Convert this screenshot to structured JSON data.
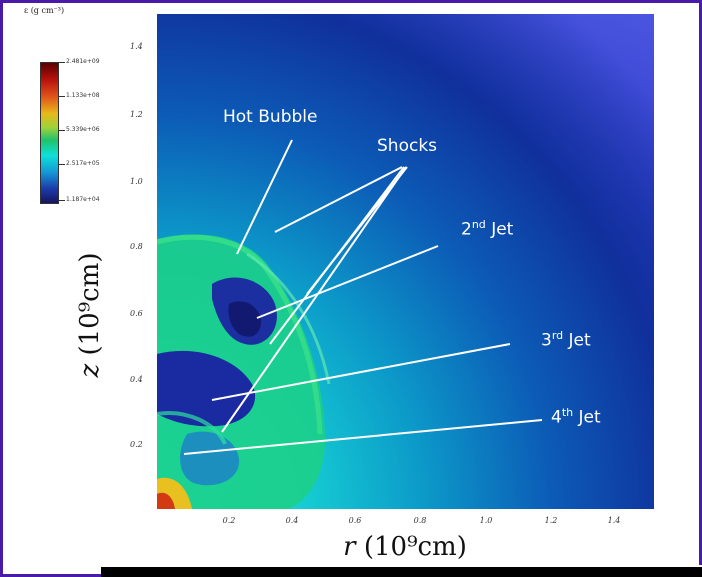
{
  "colorbar": {
    "title": "ε (g cm⁻³)",
    "labels": [
      "2.481e+09",
      "1.133e+08",
      "5.339e+06",
      "2.517e+05",
      "1.187e+04"
    ],
    "colors": [
      "#5a0000",
      "#b8120c",
      "#e8b81a",
      "#22c26a",
      "#0fe0d8",
      "#1b3aa8",
      "#161560"
    ]
  },
  "axes": {
    "y_label_var": "z",
    "y_label_unit": "(10⁹cm)",
    "x_label_var": "r",
    "x_label_unit": "(10⁹cm)",
    "y_ticks": [
      "1.4",
      "1.2",
      "1.0",
      "0.8",
      "0.6",
      "0.4",
      "0.2"
    ],
    "x_ticks": [
      "0.2",
      "0.4",
      "0.6",
      "0.8",
      "1.0",
      "1.2",
      "1.4"
    ]
  },
  "annotations": {
    "hot_bubble": "Hot Bubble",
    "shocks": "Shocks",
    "jet2_num": "2",
    "jet2_sup": "nd",
    "jet3_num": "3",
    "jet3_sup": "rd",
    "jet4_num": "4",
    "jet4_sup": "th",
    "jet_word": "Jet"
  },
  "colors": {
    "frame": "#4a1aa8",
    "background_far": "#2f3cc8",
    "background_near": "#20f2df"
  }
}
